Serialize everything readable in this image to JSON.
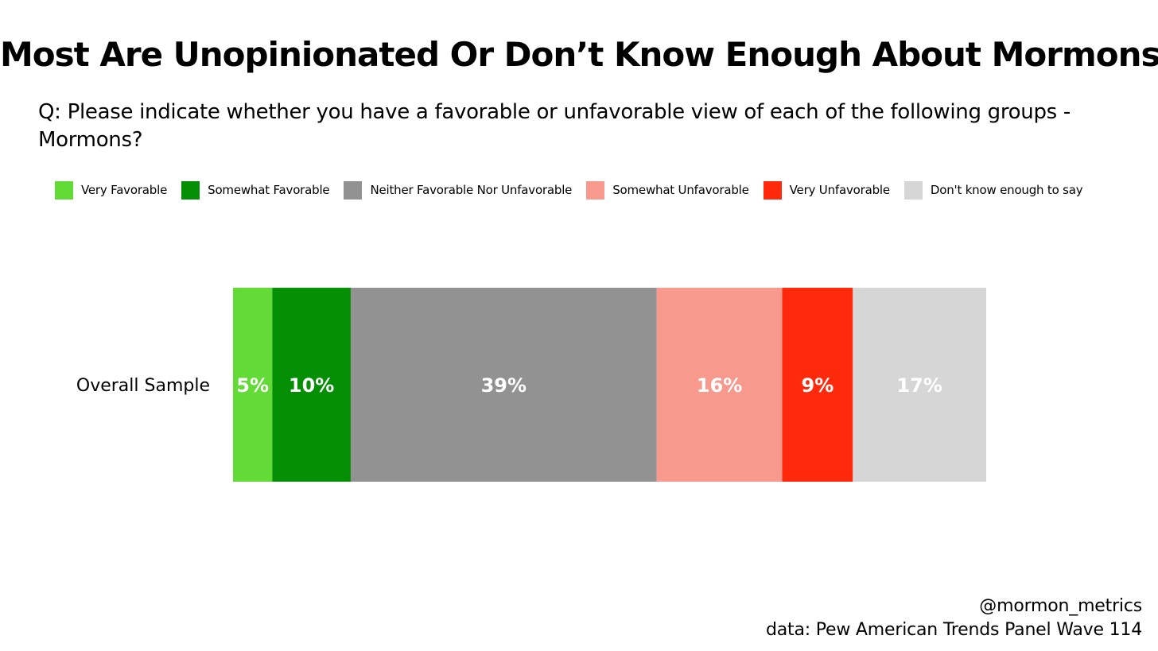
{
  "chart_data": {
    "type": "bar",
    "orientation": "horizontal",
    "stacked": true,
    "title": "Most Are Unopinionated Or Don’t Know Enough About Mormons",
    "subtitle": "Q: Please indicate whether you have a favorable or unfavorable view of each of the following groups - Mormons?",
    "categories": [
      "Overall Sample"
    ],
    "series": [
      {
        "name": "Very Favorable",
        "values": [
          5
        ],
        "label": "5%",
        "color": "#62DB37"
      },
      {
        "name": "Somewhat Favorable",
        "values": [
          10
        ],
        "label": "10%",
        "color": "#058F05"
      },
      {
        "name": "Neither Favorable Nor Unfavorable",
        "values": [
          39
        ],
        "label": "39%",
        "color": "#929292"
      },
      {
        "name": "Somewhat Unfavorable",
        "values": [
          16
        ],
        "label": "16%",
        "color": "#F7998C"
      },
      {
        "name": "Very Unfavorable",
        "values": [
          9
        ],
        "label": "9%",
        "color": "#FF2A0B"
      },
      {
        "name": "Don't know enough to say",
        "values": [
          17
        ],
        "label": "17%",
        "color": "#D6D6D6"
      }
    ],
    "legend_position": "top",
    "grid": false,
    "xlabel": "",
    "ylabel": ""
  },
  "credit": {
    "handle": "@mormon_metrics",
    "source": "data: Pew American Trends Panel Wave 114"
  }
}
